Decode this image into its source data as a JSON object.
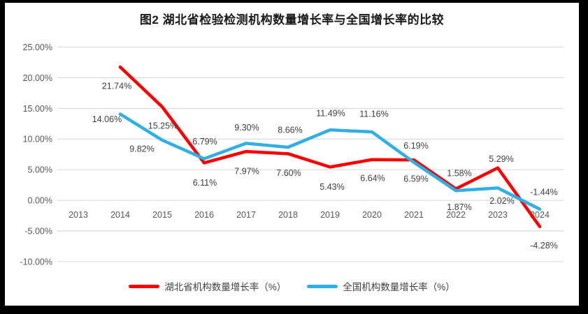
{
  "title": "图2 湖北省检验检测机构数量增长率与全国增长率的比较",
  "chart_data": {
    "type": "line",
    "title": "图2 湖北省检验检测机构数量增长率与全国增长率的比较",
    "categories": [
      "2013",
      "2014",
      "2015",
      "2016",
      "2017",
      "2018",
      "2019",
      "2020",
      "2021",
      "2022",
      "2023",
      "2024"
    ],
    "series": [
      {
        "name": "湖北省机构数量增长率（%）",
        "color": "#FF0000",
        "values": [
          null,
          21.74,
          15.25,
          6.11,
          7.97,
          7.6,
          5.43,
          6.64,
          6.59,
          1.87,
          5.29,
          -4.28
        ],
        "label_offsets": [
          null,
          [
            -5,
            27
          ],
          [
            1,
            27
          ],
          [
            1,
            28
          ],
          [
            1,
            28
          ],
          [
            1,
            27
          ],
          [
            3,
            28
          ],
          [
            1,
            26
          ],
          [
            3,
            27
          ],
          [
            5,
            26
          ],
          [
            5,
            -13
          ],
          [
            6,
            27
          ]
        ]
      },
      {
        "name": "全国机构数量增长率（%）",
        "color": "#2EB0E6",
        "values": [
          null,
          14.06,
          9.82,
          6.79,
          9.3,
          8.66,
          11.49,
          11.16,
          6.19,
          1.58,
          2.02,
          -1.44
        ],
        "label_offsets": [
          null,
          [
            -19,
            7
          ],
          [
            -29,
            12
          ],
          [
            1,
            -25
          ],
          [
            1,
            -23
          ],
          [
            3,
            -25
          ],
          [
            1,
            -24
          ],
          [
            3,
            -26
          ],
          [
            3,
            -24
          ],
          [
            5,
            -25
          ],
          [
            6,
            18
          ],
          [
            6,
            -25
          ]
        ]
      }
    ],
    "y_ticks": [
      "25.00%",
      "20.00%",
      "15.00%",
      "10.00%",
      "5.00%",
      "0.00%",
      "-5.00%",
      "-10.00%"
    ],
    "ylim": [
      -10,
      25
    ],
    "grid": true,
    "legend_position": "bottom",
    "label_format": "0.00%"
  },
  "colors": {
    "grid": "#DBDBDB",
    "axis_text": "#595959",
    "data_label_text": "#404040",
    "title_text": "#1A1A1A",
    "frame": "#000000",
    "background": "#FFFFFF"
  }
}
